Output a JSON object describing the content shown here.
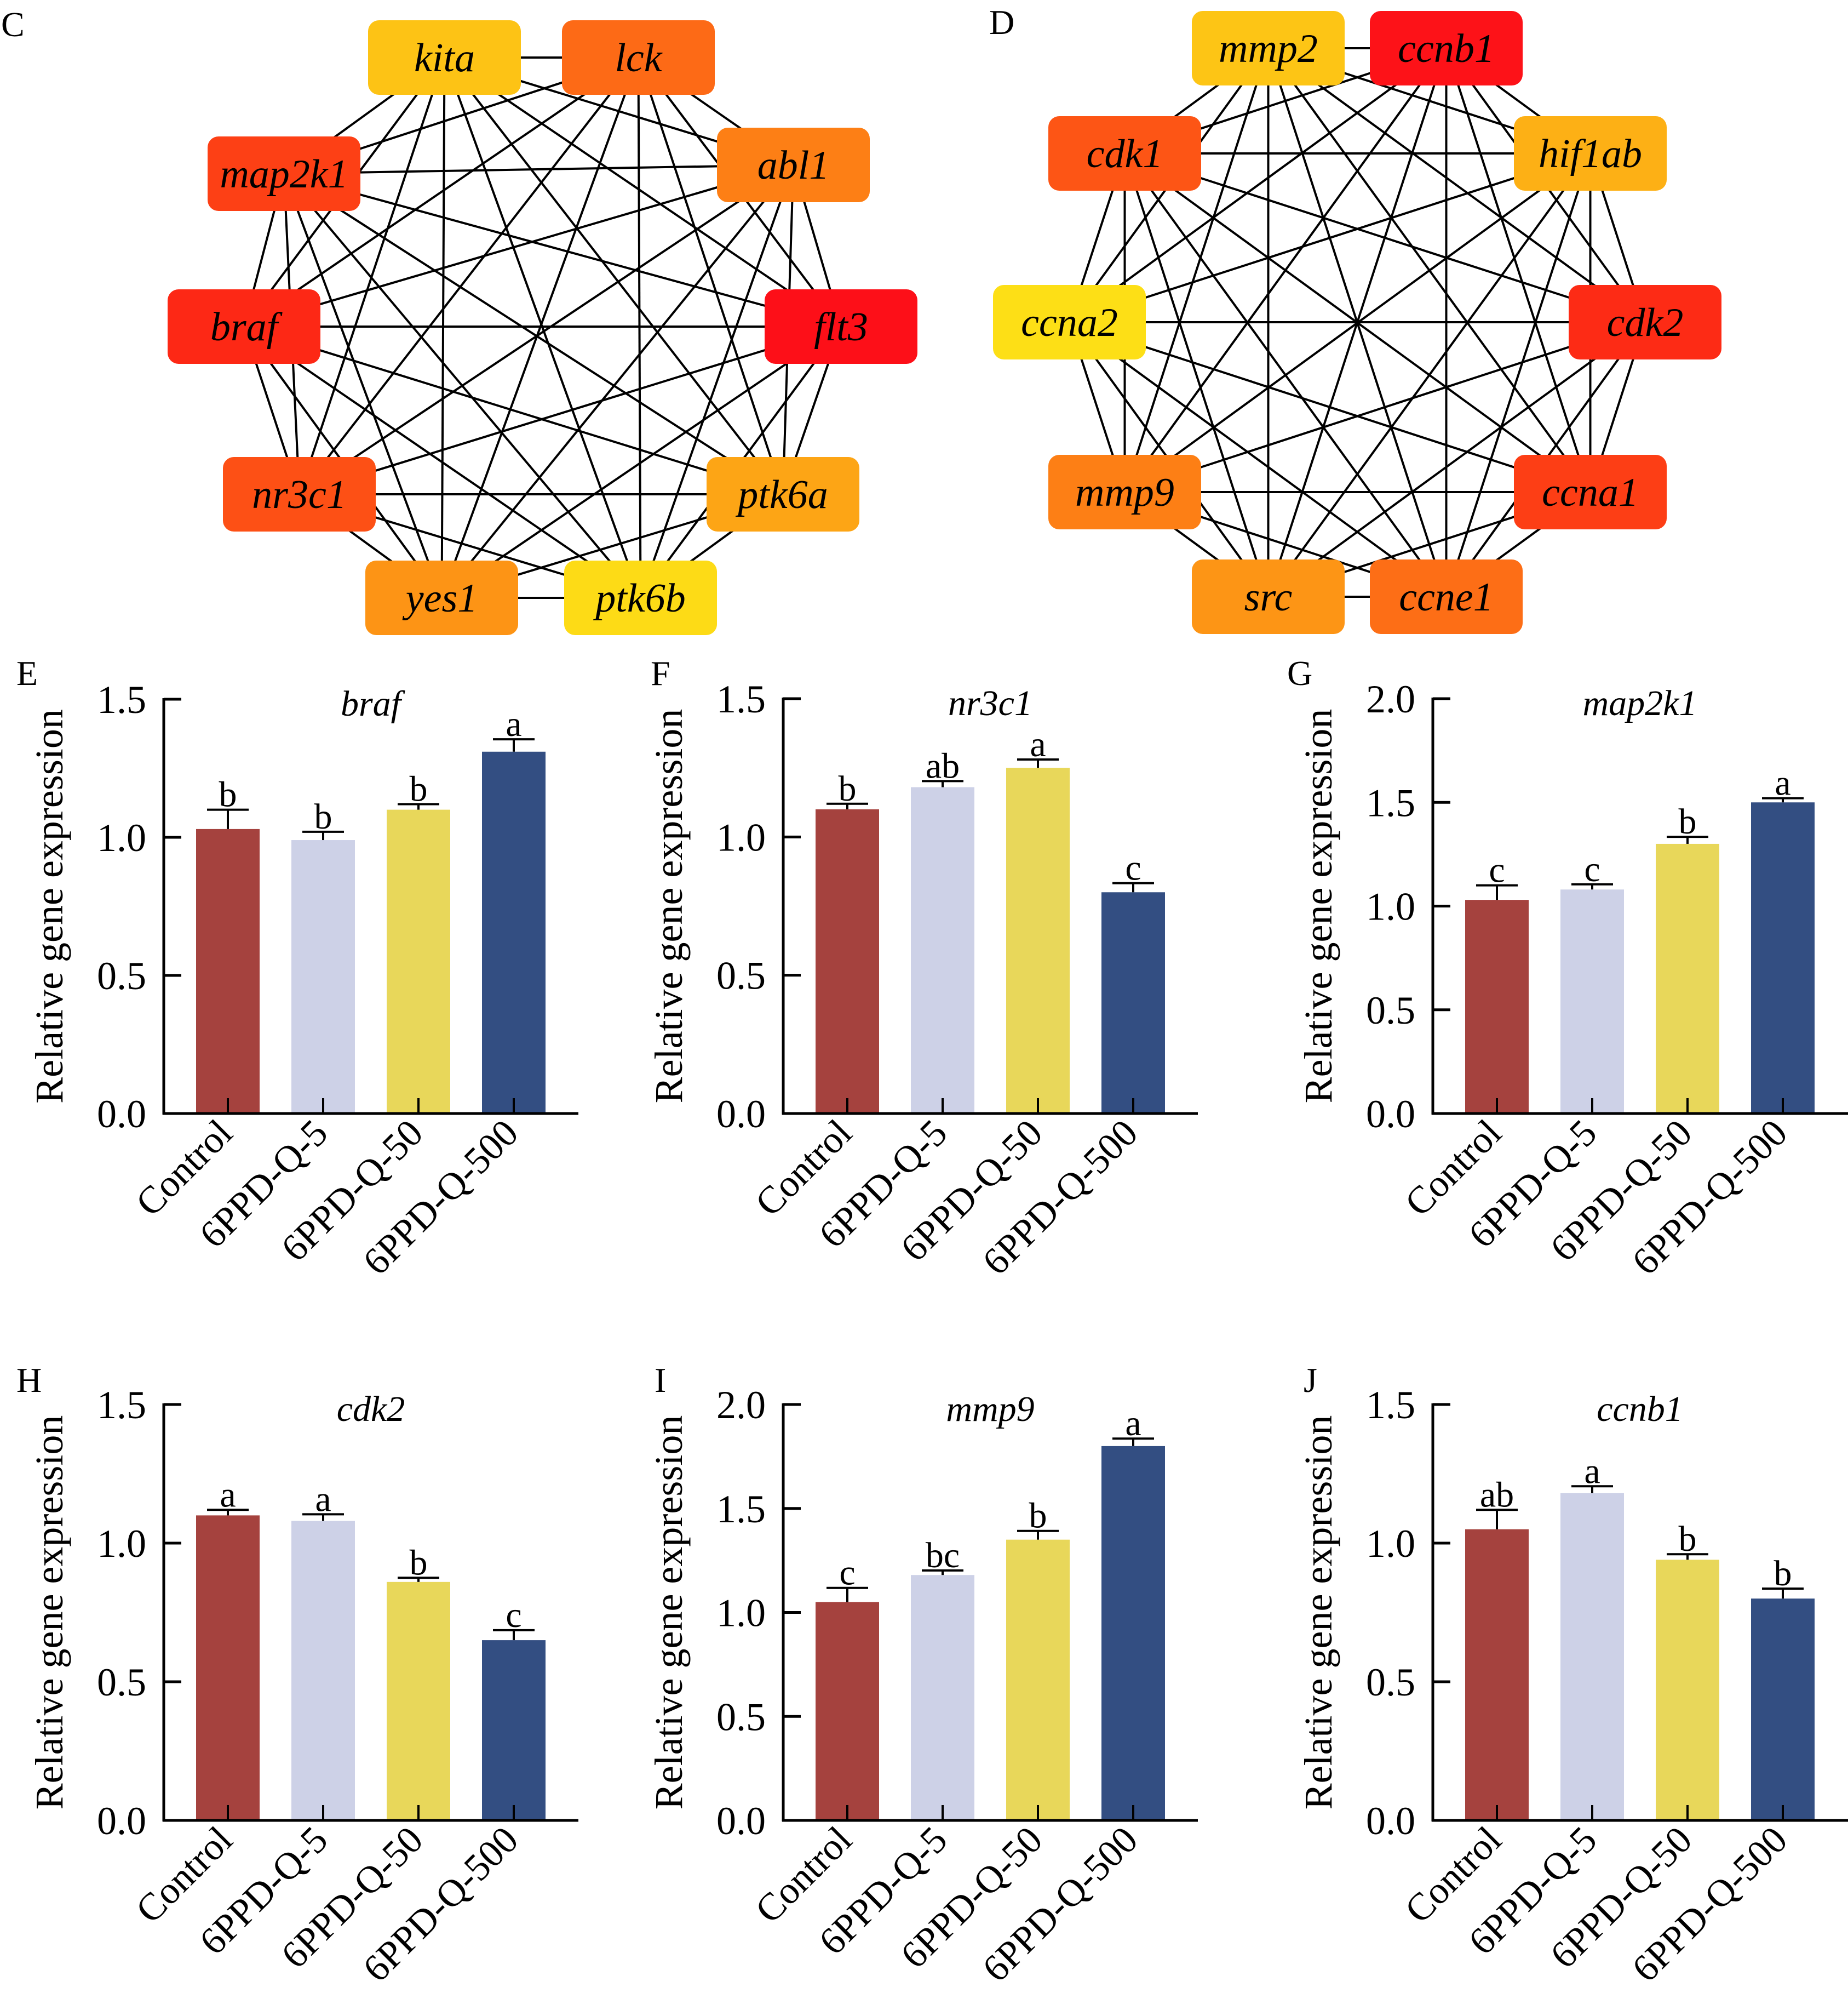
{
  "networks": [
    {
      "panel": "C",
      "nodes": [
        {
          "id": "kita",
          "color": "#FDC315"
        },
        {
          "id": "lck",
          "color": "#FD6A16"
        },
        {
          "id": "abl1",
          "color": "#FD7F15"
        },
        {
          "id": "flt3",
          "color": "#FD0F18"
        },
        {
          "id": "ptk6a",
          "color": "#FDA515"
        },
        {
          "id": "ptk6b",
          "color": "#FDDB16"
        },
        {
          "id": "yes1",
          "color": "#FD9415"
        },
        {
          "id": "nr3c1",
          "color": "#FD5015"
        },
        {
          "id": "braf",
          "color": "#FD2815"
        },
        {
          "id": "map2k1",
          "color": "#FD4015"
        }
      ],
      "edges": "complete"
    },
    {
      "panel": "D",
      "nodes": [
        {
          "id": "mmp2",
          "color": "#FDC515"
        },
        {
          "id": "ccnb1",
          "color": "#FD1218"
        },
        {
          "id": "hif1ab",
          "color": "#FDB015"
        },
        {
          "id": "cdk2",
          "color": "#FD2B15"
        },
        {
          "id": "ccna1",
          "color": "#FD3E15"
        },
        {
          "id": "ccne1",
          "color": "#FD6E16"
        },
        {
          "id": "src",
          "color": "#FD9515"
        },
        {
          "id": "mmp9",
          "color": "#FD7F15"
        },
        {
          "id": "ccna2",
          "color": "#FDDF16"
        },
        {
          "id": "cdk1",
          "color": "#FD5515"
        }
      ],
      "edges": "complete"
    }
  ],
  "chart_data": [
    {
      "panel": "E",
      "type": "bar",
      "title": "braf",
      "xlabel": "",
      "ylabel": "Relative gene expression",
      "ylim": [
        0,
        1.5
      ],
      "yticks": [
        "0.0",
        "0.5",
        "1.0",
        "1.5"
      ],
      "ytick_values": [
        0,
        0.5,
        1.0,
        1.5
      ],
      "categories": [
        "Control",
        "6PPD-Q-5",
        "6PPD-Q-50",
        "6PPD-Q-500"
      ],
      "values": [
        1.03,
        0.99,
        1.1,
        1.31
      ],
      "errors": [
        0.07,
        0.03,
        0.02,
        0.045
      ],
      "significance": [
        "b",
        "b",
        "b",
        "a"
      ]
    },
    {
      "panel": "F",
      "type": "bar",
      "title": "nr3c1",
      "xlabel": "",
      "ylabel": "Relative gene expression",
      "ylim": [
        0,
        1.5
      ],
      "yticks": [
        "0.0",
        "0.5",
        "1.0",
        "1.5"
      ],
      "ytick_values": [
        0,
        0.5,
        1.0,
        1.5
      ],
      "categories": [
        "Control",
        "6PPD-Q-5",
        "6PPD-Q-50",
        "6PPD-Q-500"
      ],
      "values": [
        1.1,
        1.18,
        1.25,
        0.8
      ],
      "errors": [
        0.02,
        0.022,
        0.03,
        0.033
      ],
      "significance": [
        "b",
        "ab",
        "a",
        "c"
      ]
    },
    {
      "panel": "G",
      "type": "bar",
      "title": "map2k1",
      "xlabel": "",
      "ylabel": "Relative gene expression",
      "ylim": [
        0,
        2.0
      ],
      "yticks": [
        "0.0",
        "0.5",
        "1.0",
        "1.5",
        "2.0"
      ],
      "ytick_values": [
        0,
        0.5,
        1.0,
        1.5,
        2.0
      ],
      "categories": [
        "Control",
        "6PPD-Q-5",
        "6PPD-Q-50",
        "6PPD-Q-500"
      ],
      "values": [
        1.03,
        1.08,
        1.3,
        1.5
      ],
      "errors": [
        0.07,
        0.025,
        0.034,
        0.02
      ],
      "significance": [
        "c",
        "c",
        "b",
        "a"
      ]
    },
    {
      "panel": "H",
      "type": "bar",
      "title": "cdk2",
      "xlabel": "",
      "ylabel": "Relative gene expression",
      "ylim": [
        0,
        1.5
      ],
      "yticks": [
        "0.0",
        "0.5",
        "1.0",
        "1.5"
      ],
      "ytick_values": [
        0,
        0.5,
        1.0,
        1.5
      ],
      "categories": [
        "Control",
        "6PPD-Q-5",
        "6PPD-Q-50",
        "6PPD-Q-500"
      ],
      "values": [
        1.1,
        1.08,
        0.86,
        0.65
      ],
      "errors": [
        0.02,
        0.024,
        0.015,
        0.036
      ],
      "significance": [
        "a",
        "a",
        "b",
        "c"
      ]
    },
    {
      "panel": "I",
      "type": "bar",
      "title": "mmp9",
      "xlabel": "",
      "ylabel": "Relative gene expression",
      "ylim": [
        0,
        2.0
      ],
      "yticks": [
        "0.0",
        "0.5",
        "1.0",
        "1.5",
        "2.0"
      ],
      "ytick_values": [
        0,
        0.5,
        1.0,
        1.5,
        2.0
      ],
      "categories": [
        "Control",
        "6PPD-Q-5",
        "6PPD-Q-50",
        "6PPD-Q-500"
      ],
      "values": [
        1.05,
        1.18,
        1.35,
        1.8
      ],
      "errors": [
        0.068,
        0.022,
        0.042,
        0.036
      ],
      "significance": [
        "c",
        "bc",
        "b",
        "a"
      ]
    },
    {
      "panel": "J",
      "type": "bar",
      "title": "ccnb1",
      "xlabel": "",
      "ylabel": "Relative gene expression",
      "ylim": [
        0,
        1.5
      ],
      "yticks": [
        "0.0",
        "0.5",
        "1.0",
        "1.5"
      ],
      "ytick_values": [
        0,
        0.5,
        1.0,
        1.5
      ],
      "categories": [
        "Control",
        "6PPD-Q-5",
        "6PPD-Q-50",
        "6PPD-Q-500"
      ],
      "values": [
        1.05,
        1.18,
        0.94,
        0.8
      ],
      "errors": [
        0.07,
        0.025,
        0.02,
        0.036
      ],
      "significance": [
        "ab",
        "a",
        "b",
        "b"
      ]
    }
  ],
  "bar_colors": [
    "#A5423E",
    "#CDD1E7",
    "#E8D75A",
    "#334E82"
  ]
}
